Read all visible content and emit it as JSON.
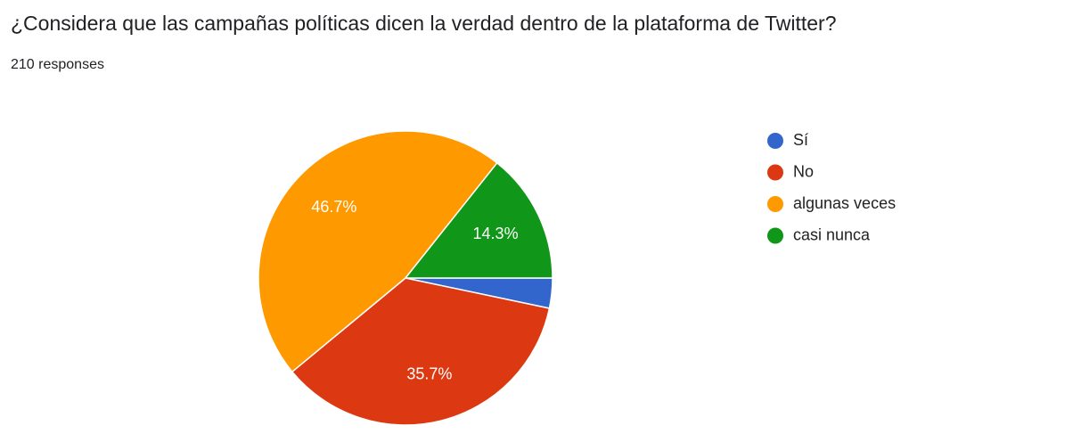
{
  "chart_data": {
    "type": "pie",
    "title": "¿Considera que las campañas políticas dicen la verdad dentro de la plataforma de Twitter?",
    "subtitle": "210 responses",
    "categories": [
      "Sí",
      "No",
      "algunas veces",
      "casi nunca"
    ],
    "values": [
      3.3,
      35.7,
      46.7,
      14.3
    ],
    "value_labels": [
      null,
      "35.7%",
      "46.7%",
      "14.3%"
    ],
    "colors": [
      "#3366cc",
      "#dc3912",
      "#ff9900",
      "#109618"
    ],
    "legend": "right"
  }
}
